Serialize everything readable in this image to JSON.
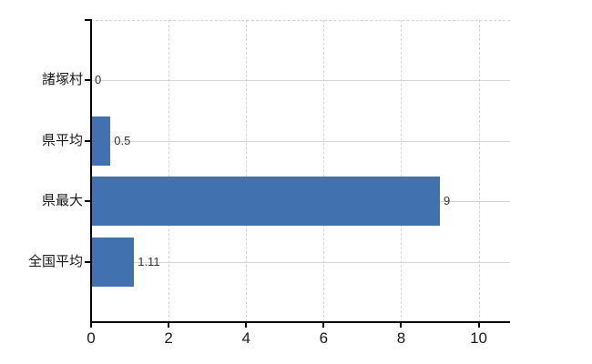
{
  "chart_data": {
    "type": "bar",
    "orientation": "horizontal",
    "title": "",
    "categories": [
      "諸塚村",
      "県平均",
      "県最大",
      "全国平均"
    ],
    "values": [
      0,
      0.5,
      9,
      1.11
    ],
    "data_labels": [
      "0",
      "0.5",
      "9",
      "1.11"
    ],
    "x_ticks": [
      0,
      2,
      4,
      6,
      8,
      10
    ],
    "x_tick_labels": [
      "0",
      "2",
      "4",
      "6",
      "8",
      "10"
    ],
    "xlim": [
      0,
      10.81
    ],
    "grid": true,
    "legend": false,
    "bar_color": "#4171af",
    "gridline_color": "#d6d6d6",
    "axis_color": "#000000",
    "category_label_color": "#1a1a1a",
    "tick_label_color": "#1a1a1a",
    "data_label_color": "#333333",
    "background": "#ffffff"
  }
}
